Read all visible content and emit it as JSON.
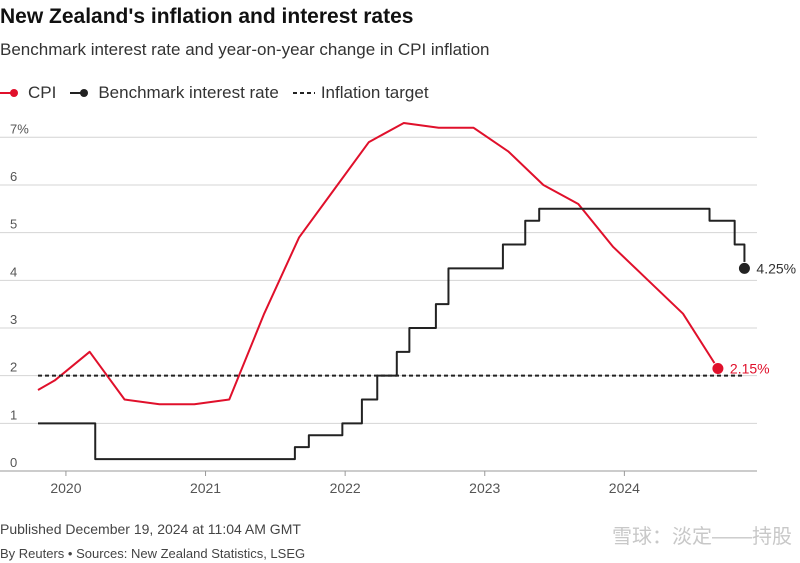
{
  "title": "New Zealand's inflation and interest rates",
  "subtitle": "Benchmark interest rate and year-on-year change in CPI inflation",
  "legend": [
    {
      "label": "CPI",
      "color": "#e0102b",
      "style": "line-dot"
    },
    {
      "label": "Benchmark interest rate",
      "color": "#222222",
      "style": "line-dot"
    },
    {
      "label": "Inflation target",
      "color": "#222222",
      "style": "dashed"
    }
  ],
  "published": "Published December 19, 2024 at 11:04 AM GMT",
  "byline": "By Reuters • Sources: New Zealand Statistics, LSEG",
  "watermark": "雪球：淡定——持股",
  "chart_data": {
    "type": "line",
    "y_ticks": [
      0,
      1,
      2,
      3,
      4,
      5,
      6,
      7
    ],
    "y_tick_labels": [
      "0",
      "1",
      "2",
      "3",
      "4",
      "5",
      "6",
      "7%"
    ],
    "ylim": [
      0,
      7.3
    ],
    "xlim": [
      2019.8,
      2024.95
    ],
    "x_ticks": [
      2020,
      2021,
      2022,
      2023,
      2024
    ],
    "x_tick_labels": [
      "2020",
      "2021",
      "2022",
      "2023",
      "2024"
    ],
    "grid": true,
    "legend_position": "top-left",
    "series": [
      {
        "name": "CPI",
        "color": "#e0102b",
        "kind": "line",
        "end_label": "2.15%",
        "points": [
          [
            2019.8,
            1.7
          ],
          [
            2019.92,
            1.9
          ],
          [
            2020.17,
            2.5
          ],
          [
            2020.42,
            1.5
          ],
          [
            2020.67,
            1.4
          ],
          [
            2020.92,
            1.4
          ],
          [
            2021.17,
            1.5
          ],
          [
            2021.42,
            3.3
          ],
          [
            2021.67,
            4.9
          ],
          [
            2021.92,
            5.9
          ],
          [
            2022.17,
            6.9
          ],
          [
            2022.42,
            7.3
          ],
          [
            2022.67,
            7.2
          ],
          [
            2022.92,
            7.2
          ],
          [
            2023.17,
            6.7
          ],
          [
            2023.42,
            6.0
          ],
          [
            2023.67,
            5.6
          ],
          [
            2023.92,
            4.7
          ],
          [
            2024.17,
            4.0
          ],
          [
            2024.42,
            3.3
          ],
          [
            2024.67,
            2.15
          ]
        ]
      },
      {
        "name": "Benchmark interest rate",
        "color": "#222222",
        "kind": "step",
        "end_label": "4.25%",
        "points": [
          [
            2019.8,
            1.0
          ],
          [
            2020.21,
            0.25
          ],
          [
            2021.64,
            0.5
          ],
          [
            2021.74,
            0.75
          ],
          [
            2021.98,
            1.0
          ],
          [
            2022.12,
            1.5
          ],
          [
            2022.23,
            2.0
          ],
          [
            2022.37,
            2.5
          ],
          [
            2022.46,
            3.0
          ],
          [
            2022.65,
            3.5
          ],
          [
            2022.74,
            4.25
          ],
          [
            2023.13,
            4.75
          ],
          [
            2023.29,
            5.25
          ],
          [
            2023.39,
            5.5
          ],
          [
            2024.61,
            5.25
          ],
          [
            2024.79,
            4.75
          ],
          [
            2024.86,
            4.25
          ]
        ]
      },
      {
        "name": "Inflation target",
        "color": "#222222",
        "kind": "dashed",
        "points": [
          [
            2019.8,
            2.0
          ],
          [
            2024.86,
            2.0
          ]
        ]
      }
    ]
  }
}
